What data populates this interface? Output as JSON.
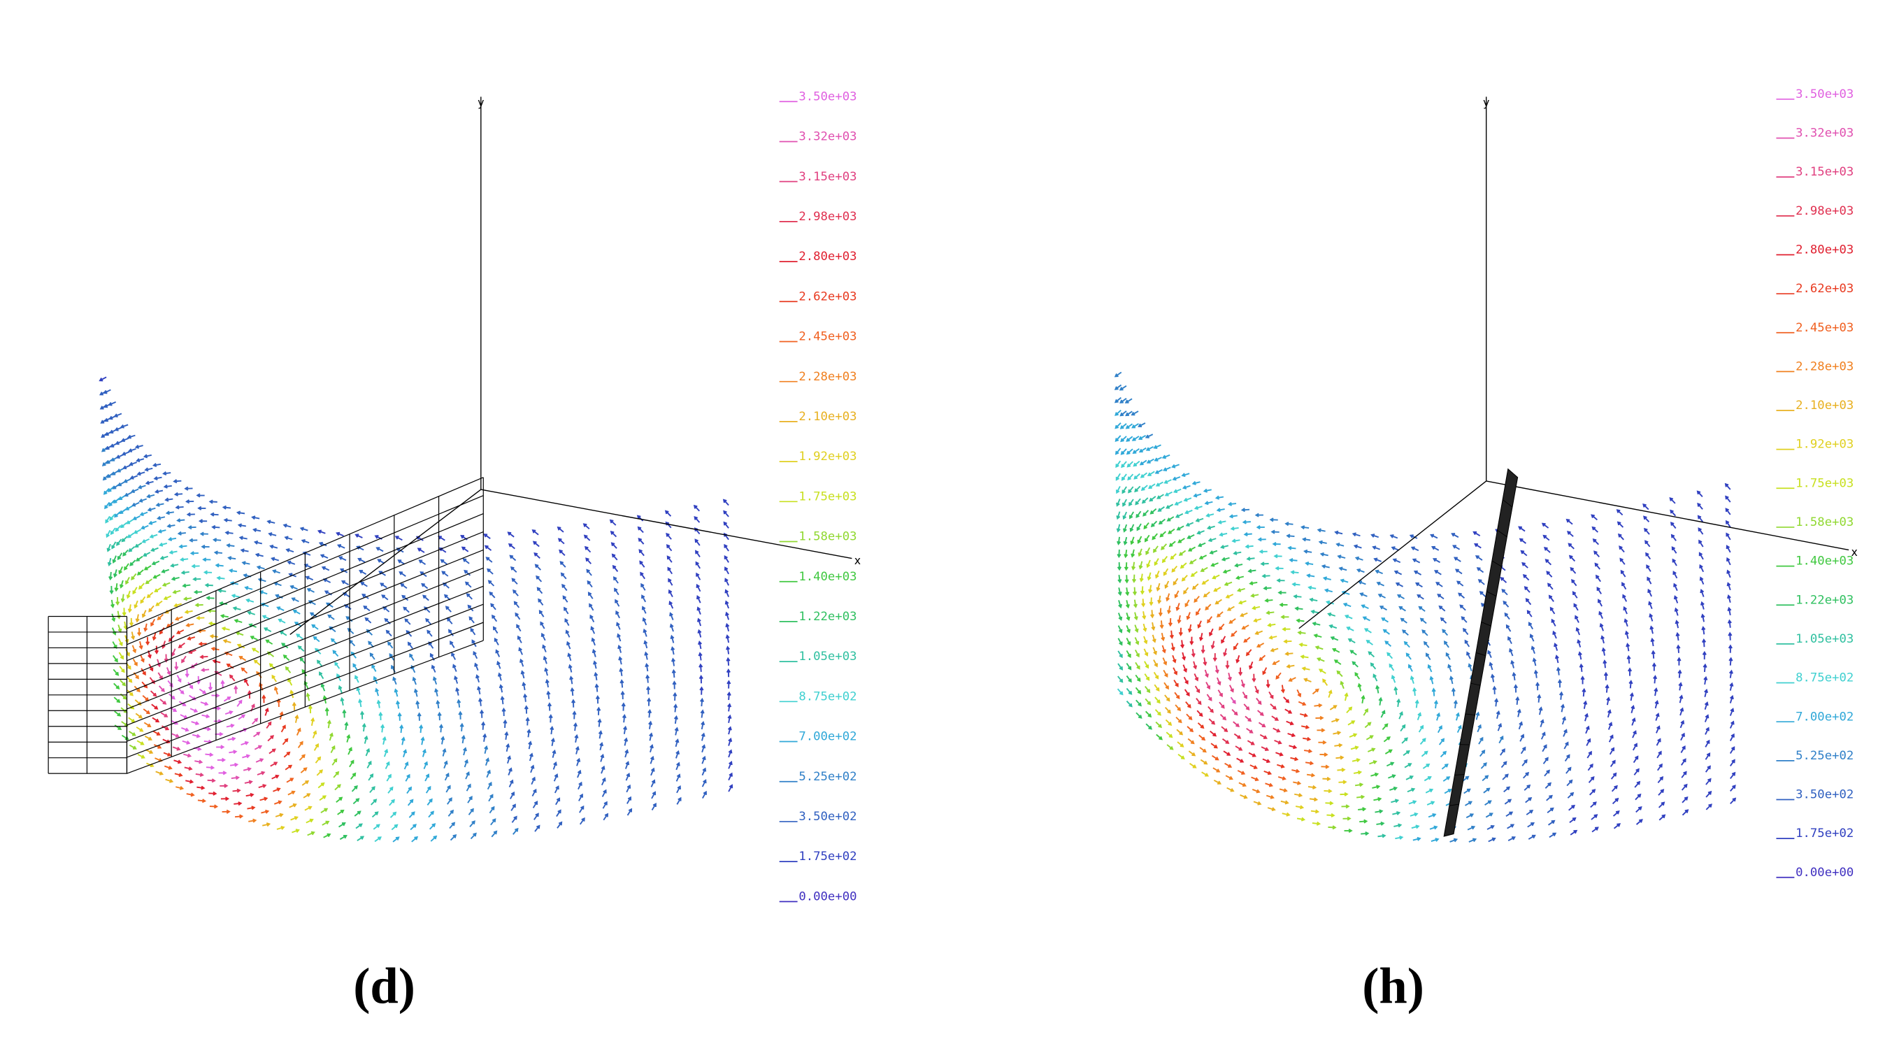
{
  "panels": [
    {
      "label": "(d)",
      "axes": {
        "y": "y",
        "x": "x"
      },
      "legend": [
        {
          "label": "3.50e+03",
          "color": "#e060e0"
        },
        {
          "label": "3.32e+03",
          "color": "#e050b0"
        },
        {
          "label": "3.15e+03",
          "color": "#e04080"
        },
        {
          "label": "2.98e+03",
          "color": "#e03050"
        },
        {
          "label": "2.80e+03",
          "color": "#e02030"
        },
        {
          "label": "2.62e+03",
          "color": "#e83a20"
        },
        {
          "label": "2.45e+03",
          "color": "#f06020"
        },
        {
          "label": "2.28e+03",
          "color": "#f08020"
        },
        {
          "label": "2.10e+03",
          "color": "#e8b020"
        },
        {
          "label": "1.92e+03",
          "color": "#e0d020"
        },
        {
          "label": "1.75e+03",
          "color": "#c8e020"
        },
        {
          "label": "1.58e+03",
          "color": "#90d830"
        },
        {
          "label": "1.40e+03",
          "color": "#40c840"
        },
        {
          "label": "1.22e+03",
          "color": "#30c060"
        },
        {
          "label": "1.05e+03",
          "color": "#30c0a0"
        },
        {
          "label": "8.75e+02",
          "color": "#40d0d0"
        },
        {
          "label": "7.00e+02",
          "color": "#30a8d8"
        },
        {
          "label": "5.25e+02",
          "color": "#3080c8"
        },
        {
          "label": "3.50e+02",
          "color": "#3060c0"
        },
        {
          "label": "1.75e+02",
          "color": "#3040c0"
        },
        {
          "label": "0.00e+00",
          "color": "#4030c0"
        }
      ]
    },
    {
      "label": "(h)",
      "axes": {
        "y": "y",
        "x": "x"
      },
      "legend": [
        {
          "label": "3.50e+03",
          "color": "#e060e0"
        },
        {
          "label": "3.32e+03",
          "color": "#e050b0"
        },
        {
          "label": "3.15e+03",
          "color": "#e04080"
        },
        {
          "label": "2.98e+03",
          "color": "#e03050"
        },
        {
          "label": "2.80e+03",
          "color": "#e02030"
        },
        {
          "label": "2.62e+03",
          "color": "#e83a20"
        },
        {
          "label": "2.45e+03",
          "color": "#f06020"
        },
        {
          "label": "2.28e+03",
          "color": "#f08020"
        },
        {
          "label": "2.10e+03",
          "color": "#e8b020"
        },
        {
          "label": "1.92e+03",
          "color": "#e0d020"
        },
        {
          "label": "1.75e+03",
          "color": "#c8e020"
        },
        {
          "label": "1.58e+03",
          "color": "#90d830"
        },
        {
          "label": "1.40e+03",
          "color": "#40c840"
        },
        {
          "label": "1.22e+03",
          "color": "#30c060"
        },
        {
          "label": "1.05e+03",
          "color": "#30c0a0"
        },
        {
          "label": "8.75e+02",
          "color": "#40d0d0"
        },
        {
          "label": "7.00e+02",
          "color": "#30a8d8"
        },
        {
          "label": "5.25e+02",
          "color": "#3080c8"
        },
        {
          "label": "3.50e+02",
          "color": "#3060c0"
        },
        {
          "label": "1.75e+02",
          "color": "#3040c0"
        },
        {
          "label": "0.00e+00",
          "color": "#4030c0"
        }
      ]
    }
  ]
}
